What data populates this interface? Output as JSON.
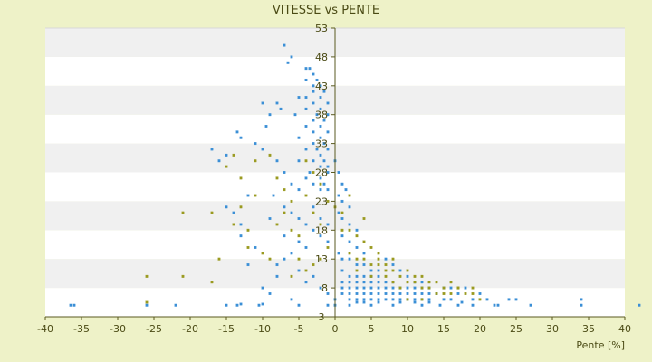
{
  "chart_data": {
    "type": "scatter",
    "title": "VITESSE vs PENTE",
    "xlabel": "Pente [%]",
    "ylabel": "",
    "xlim": [
      -40,
      40
    ],
    "ylim": [
      3,
      53
    ],
    "x_ticks": [
      -40,
      -35,
      -30,
      -25,
      -20,
      -15,
      -10,
      -5,
      0,
      5,
      10,
      15,
      20,
      25,
      30,
      35,
      40
    ],
    "y_ticks": [
      3,
      8,
      13,
      18,
      23,
      28,
      33,
      38,
      43,
      48,
      53
    ],
    "bottom_axis_label": "3",
    "grid": "horizontal alternating bands",
    "legend": "none",
    "colors": {
      "background": "#eef2c8",
      "plot_white": "#ffffff",
      "plot_band": "#f0f0f0",
      "series_blue": "#3b8fd6",
      "series_olive": "#9a9a20",
      "axis": "#5a5a20",
      "text": "#4a4a14"
    },
    "series": [
      {
        "color": "#3b8fd6",
        "points": [
          [
            -36.5,
            5
          ],
          [
            -36,
            5
          ],
          [
            -26,
            5
          ],
          [
            -22,
            5
          ],
          [
            -15,
            5
          ],
          [
            -13.5,
            5
          ],
          [
            -13,
            5.2
          ],
          [
            -10.5,
            5
          ],
          [
            -10,
            5.2
          ],
          [
            -5,
            5
          ],
          [
            -1,
            5
          ],
          [
            0,
            5
          ],
          [
            0,
            6
          ],
          [
            2,
            5
          ],
          [
            5,
            5
          ],
          [
            8,
            5
          ],
          [
            12,
            5
          ],
          [
            14.5,
            5
          ],
          [
            17,
            5
          ],
          [
            17.5,
            5.5
          ],
          [
            19,
            5
          ],
          [
            22,
            5
          ],
          [
            22.5,
            5
          ],
          [
            27,
            5
          ],
          [
            34,
            5
          ],
          [
            42,
            5
          ],
          [
            -7,
            50
          ],
          [
            -6,
            48
          ],
          [
            -6.5,
            47
          ],
          [
            -4,
            46
          ],
          [
            -3.5,
            46
          ],
          [
            -3,
            45
          ],
          [
            -2.5,
            44
          ],
          [
            -4,
            44
          ],
          [
            -3,
            43
          ],
          [
            -2,
            43
          ],
          [
            -1.5,
            42
          ],
          [
            -3,
            42
          ],
          [
            -4,
            41
          ],
          [
            -2,
            41
          ],
          [
            -1,
            40
          ],
          [
            -3,
            40
          ],
          [
            -2,
            39
          ],
          [
            -4,
            39
          ],
          [
            -1,
            38
          ],
          [
            -2.5,
            38
          ],
          [
            -3,
            37
          ],
          [
            -1.5,
            37
          ],
          [
            -2,
            36
          ],
          [
            -4,
            36
          ],
          [
            -1,
            35
          ],
          [
            -3,
            35
          ],
          [
            -2,
            34
          ],
          [
            -1.5,
            33
          ],
          [
            -3,
            33
          ],
          [
            -2.5,
            32
          ],
          [
            -1,
            32
          ],
          [
            -4,
            32
          ],
          [
            -2,
            31
          ],
          [
            -3,
            30
          ],
          [
            -1.5,
            30
          ],
          [
            -1,
            29
          ],
          [
            -2,
            29
          ],
          [
            -3.5,
            28
          ],
          [
            -1,
            28
          ],
          [
            -2,
            27
          ],
          [
            -4,
            27
          ],
          [
            -1.5,
            26
          ],
          [
            -3,
            26
          ],
          [
            -2,
            25
          ],
          [
            -1,
            25
          ],
          [
            -5,
            30
          ],
          [
            -5,
            34
          ],
          [
            -5.5,
            38
          ],
          [
            -5,
            41
          ],
          [
            -8,
            40
          ],
          [
            -9,
            38
          ],
          [
            -9.5,
            36
          ],
          [
            -10,
            40
          ],
          [
            -7.5,
            39
          ],
          [
            -13,
            34
          ],
          [
            -13.5,
            35
          ],
          [
            -17,
            32
          ],
          [
            -15,
            31
          ],
          [
            -16,
            30
          ],
          [
            -11,
            33
          ],
          [
            -10,
            32
          ],
          [
            -8,
            30
          ],
          [
            -7,
            28
          ],
          [
            -6,
            26
          ],
          [
            -5,
            25
          ],
          [
            -8.5,
            24
          ],
          [
            -7,
            22
          ],
          [
            -6,
            21
          ],
          [
            -5,
            20
          ],
          [
            -9,
            20
          ],
          [
            -4,
            19
          ],
          [
            -3,
            18
          ],
          [
            -2,
            17
          ],
          [
            -1,
            16
          ],
          [
            -4,
            15
          ],
          [
            -6,
            14
          ],
          [
            -7,
            13
          ],
          [
            -8,
            12
          ],
          [
            -5,
            11
          ],
          [
            -3,
            10
          ],
          [
            -4,
            9
          ],
          [
            -2,
            8
          ],
          [
            -1,
            7
          ],
          [
            -6,
            6
          ],
          [
            -9,
            7
          ],
          [
            -10,
            8
          ],
          [
            -8,
            10
          ],
          [
            -12,
            12
          ],
          [
            -11,
            15
          ],
          [
            -13,
            17
          ],
          [
            -13,
            19
          ],
          [
            -14,
            21
          ],
          [
            -15,
            22
          ],
          [
            -12,
            24
          ],
          [
            -7,
            17
          ],
          [
            -3,
            22
          ],
          [
            -2,
            20
          ],
          [
            -1,
            19
          ],
          [
            -5,
            16
          ],
          [
            0,
            30
          ],
          [
            0.5,
            28
          ],
          [
            1,
            26
          ],
          [
            1.5,
            25
          ],
          [
            0.5,
            24
          ],
          [
            1,
            23
          ],
          [
            2,
            22
          ],
          [
            0.5,
            21
          ],
          [
            1,
            20
          ],
          [
            2,
            19
          ],
          [
            3,
            18
          ],
          [
            1,
            17
          ],
          [
            2,
            16
          ],
          [
            3,
            15
          ],
          [
            4,
            14
          ],
          [
            0.5,
            14
          ],
          [
            1,
            13
          ],
          [
            2,
            13
          ],
          [
            3,
            12
          ],
          [
            4,
            12
          ],
          [
            5,
            11
          ],
          [
            6,
            11
          ],
          [
            1,
            11
          ],
          [
            2,
            10
          ],
          [
            3,
            10
          ],
          [
            4,
            10
          ],
          [
            5,
            10
          ],
          [
            6,
            10
          ],
          [
            7,
            9
          ],
          [
            1,
            9
          ],
          [
            2,
            9
          ],
          [
            3,
            9
          ],
          [
            4,
            9
          ],
          [
            5,
            9
          ],
          [
            6,
            9
          ],
          [
            8,
            9
          ],
          [
            1,
            8
          ],
          [
            2,
            8
          ],
          [
            3,
            8
          ],
          [
            4,
            8
          ],
          [
            5,
            8
          ],
          [
            6,
            8
          ],
          [
            7,
            8
          ],
          [
            8,
            8
          ],
          [
            9,
            8
          ],
          [
            10,
            8
          ],
          [
            11,
            8
          ],
          [
            12,
            8
          ],
          [
            1,
            7
          ],
          [
            2,
            7
          ],
          [
            3,
            7
          ],
          [
            4,
            7
          ],
          [
            5,
            7
          ],
          [
            6,
            7
          ],
          [
            7,
            7
          ],
          [
            8,
            7
          ],
          [
            9,
            7
          ],
          [
            10,
            7
          ],
          [
            11,
            7
          ],
          [
            12,
            7
          ],
          [
            13,
            7
          ],
          [
            14,
            7
          ],
          [
            2,
            6
          ],
          [
            3,
            6
          ],
          [
            4,
            6
          ],
          [
            5,
            6
          ],
          [
            6,
            6
          ],
          [
            7,
            6
          ],
          [
            8,
            6
          ],
          [
            9,
            6
          ],
          [
            10,
            6
          ],
          [
            11,
            6
          ],
          [
            12,
            6
          ],
          [
            13,
            6
          ],
          [
            15,
            6
          ],
          [
            16,
            6
          ],
          [
            3,
            5.5
          ],
          [
            4,
            5.5
          ],
          [
            6,
            5.5
          ],
          [
            9,
            5.5
          ],
          [
            11,
            5.5
          ],
          [
            13,
            5.5
          ],
          [
            7,
            13
          ],
          [
            8,
            12
          ],
          [
            9,
            11
          ],
          [
            10,
            10
          ],
          [
            11,
            9
          ],
          [
            12,
            9
          ],
          [
            13,
            8
          ],
          [
            15,
            8
          ],
          [
            16,
            8
          ],
          [
            18,
            8
          ],
          [
            20,
            7
          ],
          [
            17,
            7
          ],
          [
            19,
            6
          ],
          [
            21,
            6
          ],
          [
            24,
            6
          ],
          [
            25,
            6
          ],
          [
            34,
            6
          ]
        ]
      },
      {
        "color": "#9a9a20",
        "points": [
          [
            -26,
            5.5
          ],
          [
            -26,
            10
          ],
          [
            -21,
            10
          ],
          [
            -21,
            21
          ],
          [
            -17,
            21
          ],
          [
            -17,
            9
          ],
          [
            -16,
            13
          ],
          [
            -15,
            29
          ],
          [
            -14,
            31
          ],
          [
            -13,
            27
          ],
          [
            -13,
            22
          ],
          [
            -14,
            19
          ],
          [
            -12,
            18
          ],
          [
            -11,
            24
          ],
          [
            -12,
            15
          ],
          [
            -10,
            14
          ],
          [
            -9,
            13
          ],
          [
            -11,
            30
          ],
          [
            -9,
            31
          ],
          [
            -8,
            27
          ],
          [
            -7,
            25
          ],
          [
            -6,
            23
          ],
          [
            -7,
            21
          ],
          [
            -8,
            19
          ],
          [
            -6,
            18
          ],
          [
            -5,
            17
          ],
          [
            -4,
            30
          ],
          [
            -3,
            28
          ],
          [
            -2,
            26
          ],
          [
            -4,
            24
          ],
          [
            -3,
            21
          ],
          [
            -2,
            19
          ],
          [
            -1,
            23
          ],
          [
            -1,
            15
          ],
          [
            -2,
            13
          ],
          [
            -3,
            12
          ],
          [
            -4,
            11
          ],
          [
            -5,
            13
          ],
          [
            -6,
            10
          ],
          [
            0,
            22
          ],
          [
            1,
            21
          ],
          [
            2,
            18
          ],
          [
            3,
            17
          ],
          [
            4,
            16
          ],
          [
            5,
            15
          ],
          [
            6,
            14
          ],
          [
            3,
            13
          ],
          [
            4,
            13
          ],
          [
            5,
            12
          ],
          [
            6,
            12
          ],
          [
            7,
            11
          ],
          [
            8,
            11
          ],
          [
            5,
            10
          ],
          [
            7,
            10
          ],
          [
            9,
            10
          ],
          [
            8,
            9
          ],
          [
            10,
            9
          ],
          [
            11,
            9
          ],
          [
            9,
            8
          ],
          [
            12,
            8
          ],
          [
            13,
            8
          ],
          [
            15,
            8
          ],
          [
            17,
            8
          ],
          [
            19,
            7
          ],
          [
            14,
            7
          ],
          [
            16,
            7
          ],
          [
            18,
            7
          ],
          [
            20,
            6
          ],
          [
            10,
            6
          ],
          [
            12,
            6
          ],
          [
            15,
            7
          ],
          [
            2,
            14
          ],
          [
            1,
            18
          ],
          [
            2,
            24
          ],
          [
            4,
            20
          ],
          [
            3,
            11
          ],
          [
            6,
            13
          ],
          [
            7,
            12
          ],
          [
            8,
            13
          ],
          [
            10,
            11
          ],
          [
            11,
            10
          ],
          [
            12,
            10
          ],
          [
            13,
            9
          ],
          [
            14,
            9
          ],
          [
            16,
            9
          ],
          [
            17,
            8
          ],
          [
            19,
            8
          ]
        ]
      }
    ]
  }
}
